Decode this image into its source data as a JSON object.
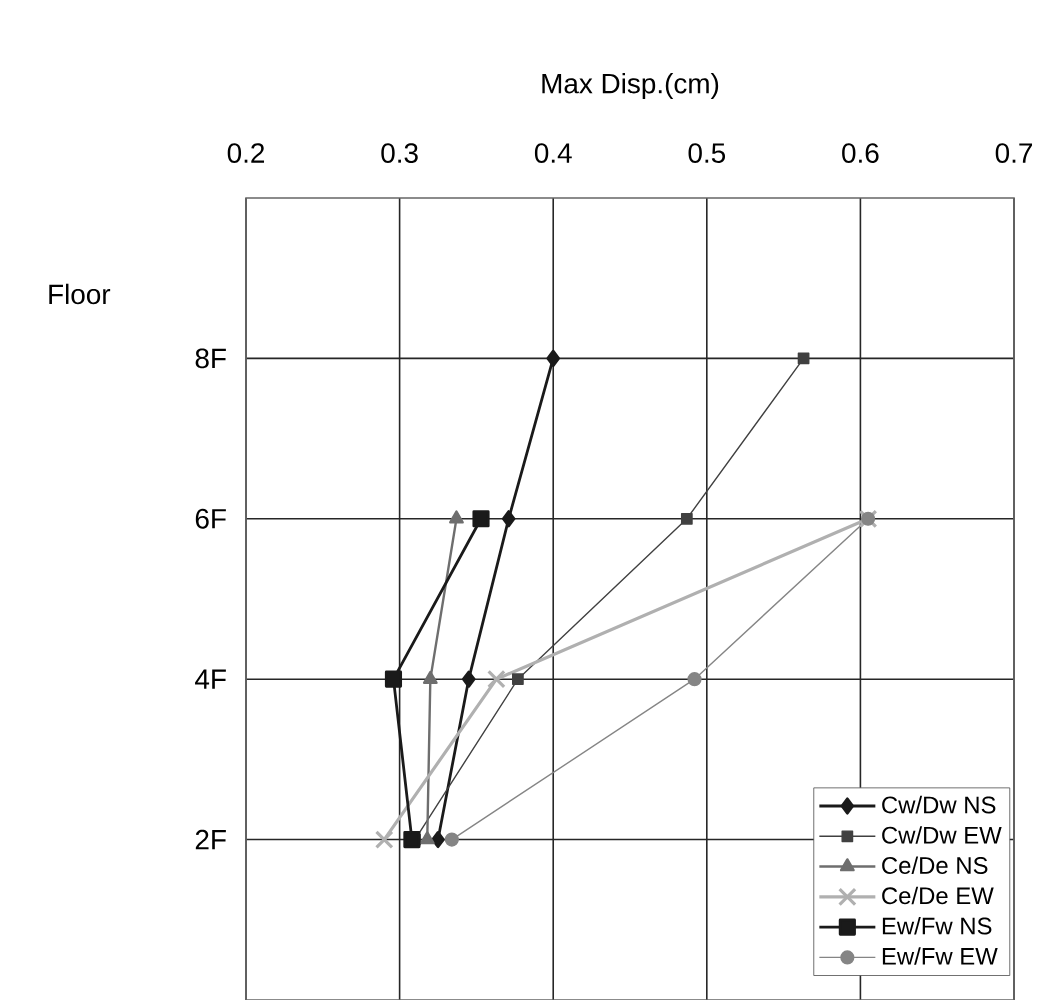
{
  "chart_data": {
    "type": "line",
    "xlabel": "Max Disp.(cm)",
    "ylabel": "Floor",
    "xlim": [
      0.2,
      0.7
    ],
    "xticks": [
      0.2,
      0.3,
      0.4,
      0.5,
      0.6,
      0.7
    ],
    "ylim": [
      0,
      10
    ],
    "yticks": [
      {
        "value": 2,
        "label": "2F"
      },
      {
        "value": 4,
        "label": "4F"
      },
      {
        "value": 6,
        "label": "6F"
      },
      {
        "value": 8,
        "label": "8F"
      }
    ],
    "grid": true,
    "legend": "bottom right",
    "line_style": "solid",
    "series": [
      {
        "name": "Cw/Dw NS",
        "color": "#1a1a1a",
        "marker": "diamond",
        "x": [
          0.325,
          0.345,
          0.371,
          0.4
        ],
        "values": [
          2,
          4,
          6,
          8
        ]
      },
      {
        "name": "Cw/Dw EW",
        "color": "#404040",
        "marker": "square",
        "x": [
          0.31,
          0.377,
          0.487,
          0.563
        ],
        "values": [
          2,
          4,
          6,
          8
        ]
      },
      {
        "name": "Ce/De NS",
        "color": "#6e6e6e",
        "marker": "triangle",
        "x": [
          0.318,
          0.32,
          0.337
        ],
        "values": [
          2,
          4,
          6
        ]
      },
      {
        "name": "Ce/De EW",
        "color": "#b0b0b0",
        "marker": "cross",
        "x": [
          0.29,
          0.363,
          0.605
        ],
        "values": [
          2,
          4,
          6
        ]
      },
      {
        "name": "Ew/Fw NS",
        "color": "#1a1a1a",
        "marker": "square",
        "x": [
          0.308,
          0.296,
          0.353
        ],
        "values": [
          2,
          4,
          6
        ]
      },
      {
        "name": "Ew/Fw EW",
        "color": "#858585",
        "marker": "circle",
        "x": [
          0.334,
          0.492,
          0.605
        ],
        "values": [
          2,
          4,
          6
        ]
      }
    ]
  }
}
